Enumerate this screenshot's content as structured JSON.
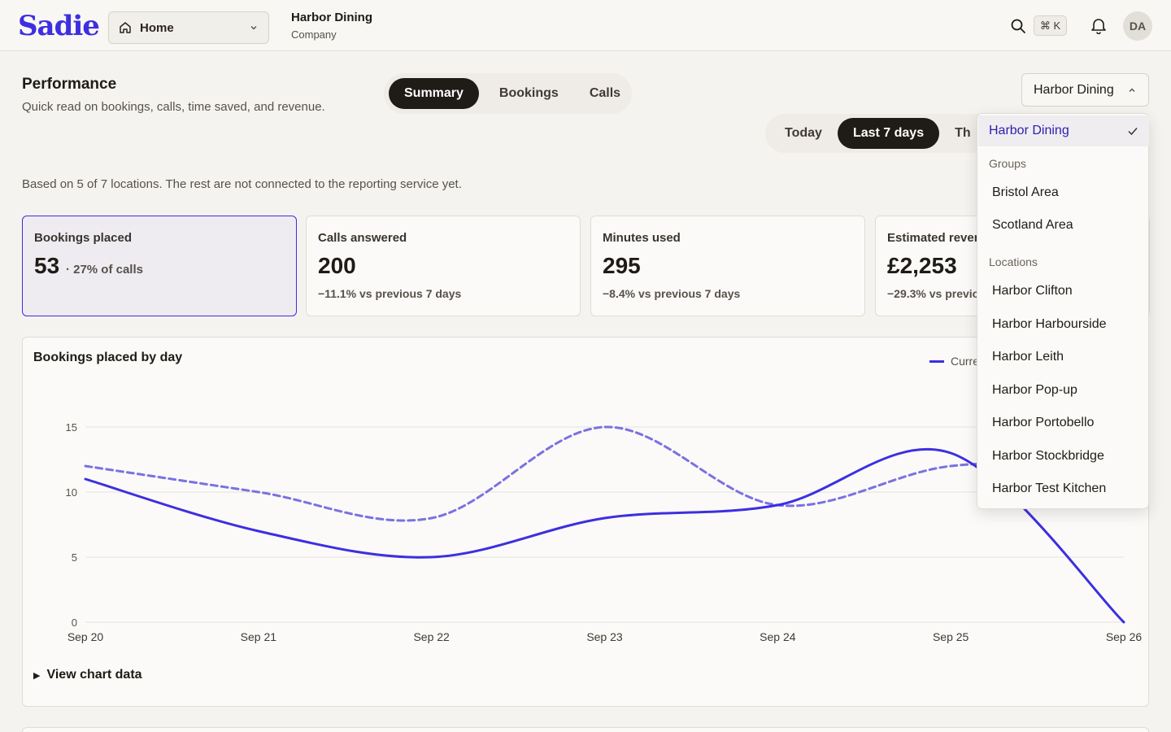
{
  "header": {
    "logo": "Sadie",
    "nav_select": "Home",
    "org_name": "Harbor Dining",
    "org_type": "Company",
    "shortcut": "⌘ K",
    "avatar_initials": "DA"
  },
  "page": {
    "title": "Performance",
    "subtitle": "Quick read on bookings, calls, time saved, and revenue.",
    "tabs": [
      "Summary",
      "Bookings",
      "Calls"
    ],
    "active_tab": "Summary",
    "range_options": [
      "Today",
      "Last 7 days",
      "Th"
    ],
    "active_range": "Last 7 days",
    "location_button": "Harbor Dining",
    "note": "Based on 5 of 7 locations. The rest are not connected to the reporting service yet."
  },
  "cards": [
    {
      "title": "Bookings placed",
      "value": "53",
      "sub": "· 27% of calls",
      "delta": ""
    },
    {
      "title": "Calls answered",
      "value": "200",
      "sub": "",
      "delta": "−11.1% vs previous 7 days"
    },
    {
      "title": "Minutes used",
      "value": "295",
      "sub": "",
      "delta": "−8.4% vs previous 7 days"
    },
    {
      "title": "Estimated reven",
      "value": "£2,253",
      "sub": "",
      "delta": "−29.3% vs previo"
    }
  ],
  "chart_panel": {
    "title": "Bookings placed by day",
    "legend_current": "Curre",
    "details_label": "View chart data"
  },
  "chart_data": {
    "type": "line",
    "title": "Bookings placed by day",
    "x": [
      "Sep 20",
      "Sep 21",
      "Sep 22",
      "Sep 23",
      "Sep 24",
      "Sep 25",
      "Sep 26"
    ],
    "ylim": [
      0,
      15
    ],
    "yticks": [
      0,
      5,
      10,
      15
    ],
    "grid": true,
    "series": [
      {
        "name": "Curre",
        "style": "solid",
        "color": "#3d2fe0",
        "values": [
          11,
          7,
          5,
          8,
          9,
          13,
          0
        ]
      },
      {
        "style": "dashed",
        "color": "#7a72e0",
        "values": [
          12,
          10,
          8,
          15,
          9,
          12,
          12
        ]
      }
    ]
  },
  "dropdown": {
    "selected": "Harbor Dining",
    "groups_label": "Groups",
    "groups": [
      "Bristol Area",
      "Scotland Area"
    ],
    "locations_label": "Locations",
    "locations": [
      "Harbor Clifton",
      "Harbor Harbourside",
      "Harbor Leith",
      "Harbor Pop-up",
      "Harbor Portobello",
      "Harbor Stockbridge",
      "Harbor Test Kitchen"
    ]
  },
  "colors": {
    "accent": "#3d2fe0",
    "background": "#f5f3ef",
    "dark": "#1f1b16"
  },
  "icons": [
    "home-icon",
    "chevron-down-icon",
    "search-icon",
    "bell-icon",
    "chevron-up-icon",
    "check-icon",
    "disclosure-triangle-icon"
  ]
}
